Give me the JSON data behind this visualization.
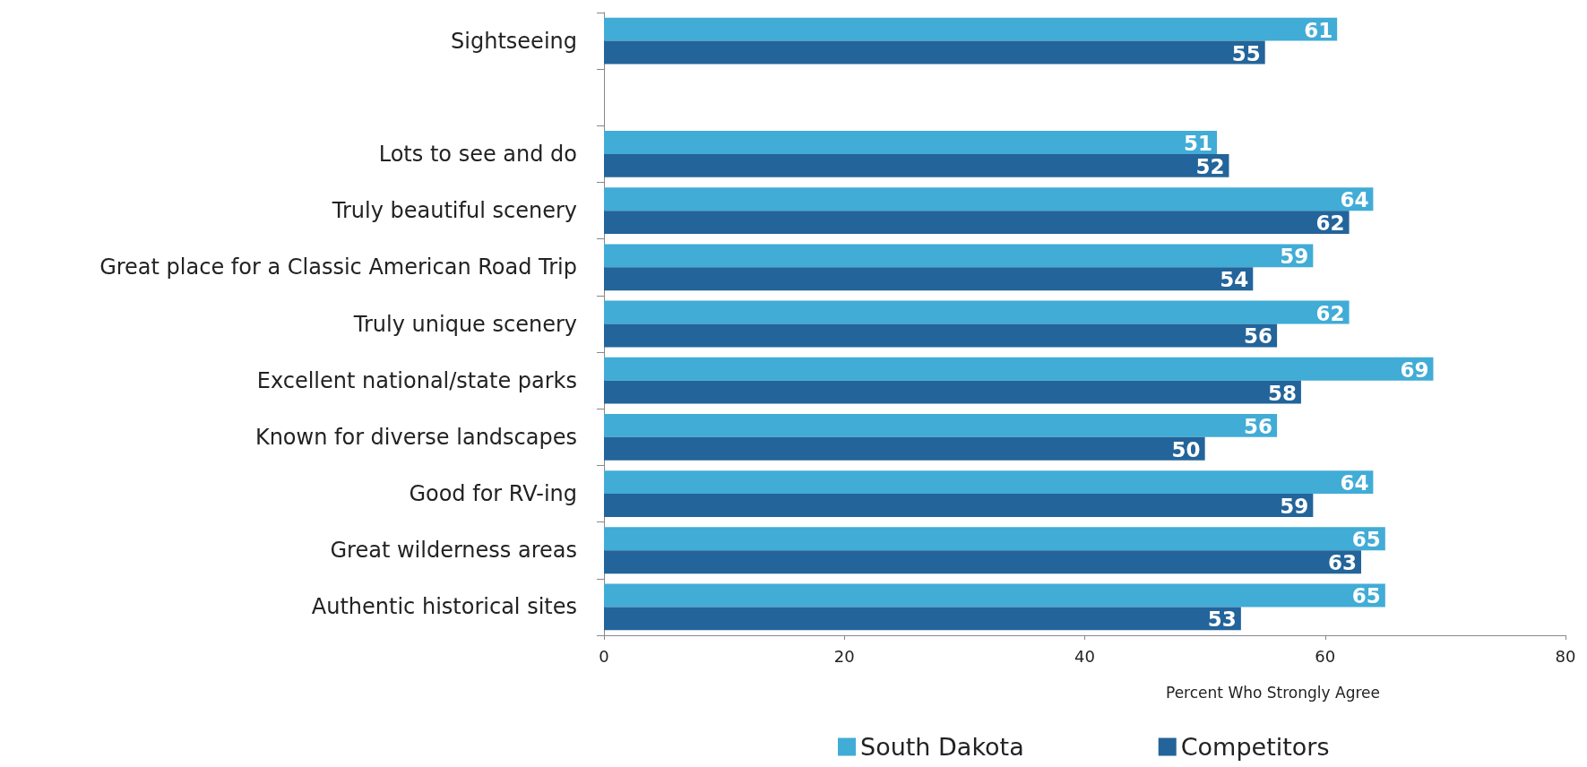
{
  "chart_data": {
    "type": "bar",
    "orientation": "horizontal",
    "xlabel": "Percent Who Strongly Agree",
    "categories": [
      "Sightseeing",
      null,
      "Lots to see and do",
      "Truly beautiful scenery",
      "Great place for a Classic American Road Trip",
      "Truly unique scenery",
      "Excellent national/state parks",
      "Known for diverse landscapes",
      "Good for RV-ing",
      "Great wilderness areas",
      "Authentic historical sites"
    ],
    "series": [
      {
        "name": "South Dakota",
        "color": "#41acd6",
        "values": [
          61,
          null,
          51,
          64,
          59,
          62,
          69,
          56,
          64,
          65,
          65
        ]
      },
      {
        "name": "Competitors",
        "color": "#23649a",
        "values": [
          55,
          null,
          52,
          62,
          54,
          56,
          58,
          50,
          59,
          63,
          53
        ]
      }
    ],
    "xlim": [
      0,
      80
    ],
    "xticks": [
      0,
      20,
      40,
      60,
      80
    ],
    "data_labels": true,
    "grid": false,
    "legend": "bottom"
  }
}
